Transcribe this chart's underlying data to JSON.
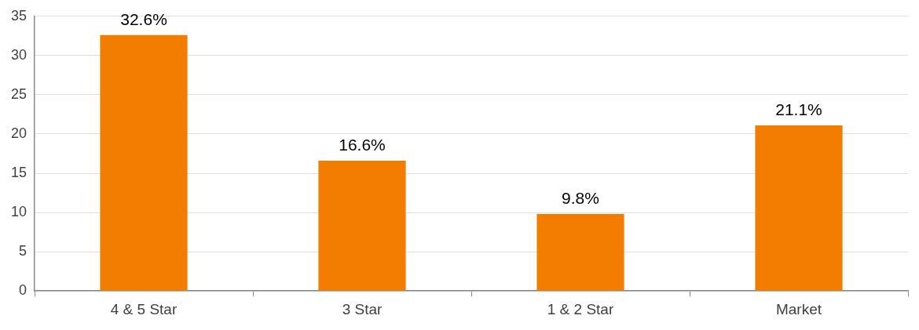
{
  "chart_data": {
    "type": "bar",
    "categories": [
      "4 & 5 Star",
      "3 Star",
      "1 & 2 Star",
      "Market"
    ],
    "values": [
      32.6,
      16.6,
      9.8,
      21.1
    ],
    "value_labels": [
      "32.6%",
      "16.6%",
      "9.8%",
      "21.1%"
    ],
    "color": "#f27d00",
    "ylim": [
      0,
      35
    ],
    "yticks": [
      0,
      5,
      10,
      15,
      20,
      25,
      30,
      35
    ],
    "grid": "y",
    "legend": false
  }
}
